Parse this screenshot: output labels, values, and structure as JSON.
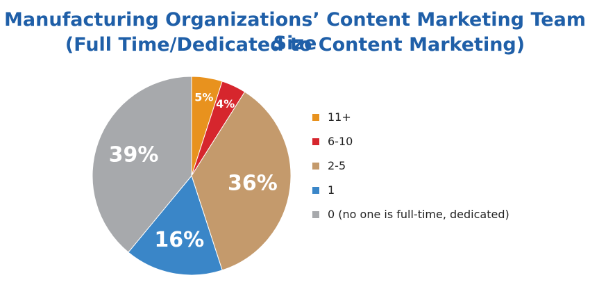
{
  "title_line1": "Manufacturing Organizations’ Content Marketing Team Size",
  "title_line2": "(Full Time/Dedicated to Content Marketing)",
  "chart_data": {
    "type": "pie",
    "start_angle_deg": 0,
    "direction": "clockwise",
    "slices": [
      {
        "label": "11+",
        "value": 5,
        "display": "5%",
        "color": "#e8921e"
      },
      {
        "label": "6-10",
        "value": 4,
        "display": "4%",
        "color": "#d6262d"
      },
      {
        "label": "2-5",
        "value": 36,
        "display": "36%",
        "color": "#c49a6c"
      },
      {
        "label": "1",
        "value": 16,
        "display": "16%",
        "color": "#3a86c8"
      },
      {
        "label": "0 (no one is full-time, dedicated)",
        "value": 39,
        "display": "39%",
        "color": "#a7a9ac"
      }
    ],
    "legend_position": "right"
  }
}
